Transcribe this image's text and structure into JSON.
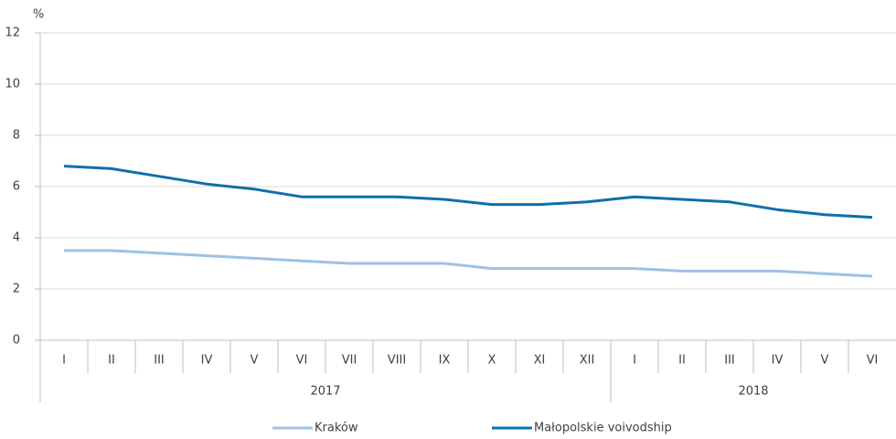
{
  "chart_data": {
    "type": "line",
    "y_unit": "%",
    "groups": [
      {
        "label": "2017",
        "categories": [
          "I",
          "II",
          "III",
          "IV",
          "V",
          "VI",
          "VII",
          "VIII",
          "IX",
          "X",
          "XI",
          "XII"
        ]
      },
      {
        "label": "2018",
        "categories": [
          "I",
          "II",
          "III",
          "IV",
          "V",
          "VI"
        ]
      }
    ],
    "series": [
      {
        "name": "Kraków",
        "color": "#9cc2e5",
        "values": [
          3.5,
          3.5,
          3.4,
          3.3,
          3.2,
          3.1,
          3.0,
          3.0,
          3.0,
          2.8,
          2.8,
          2.8,
          2.8,
          2.7,
          2.7,
          2.7,
          2.6,
          2.5
        ]
      },
      {
        "name": "Małopolskie voivodship",
        "color": "#0f6fac",
        "values": [
          6.8,
          6.7,
          6.4,
          6.1,
          5.9,
          5.6,
          5.6,
          5.6,
          5.5,
          5.3,
          5.3,
          5.4,
          5.6,
          5.5,
          5.4,
          5.1,
          4.9,
          4.8
        ]
      }
    ],
    "ylim": [
      0,
      12
    ],
    "yticks": [
      0,
      2,
      4,
      6,
      8,
      10,
      12
    ],
    "grid": true,
    "legend": "bottom"
  }
}
